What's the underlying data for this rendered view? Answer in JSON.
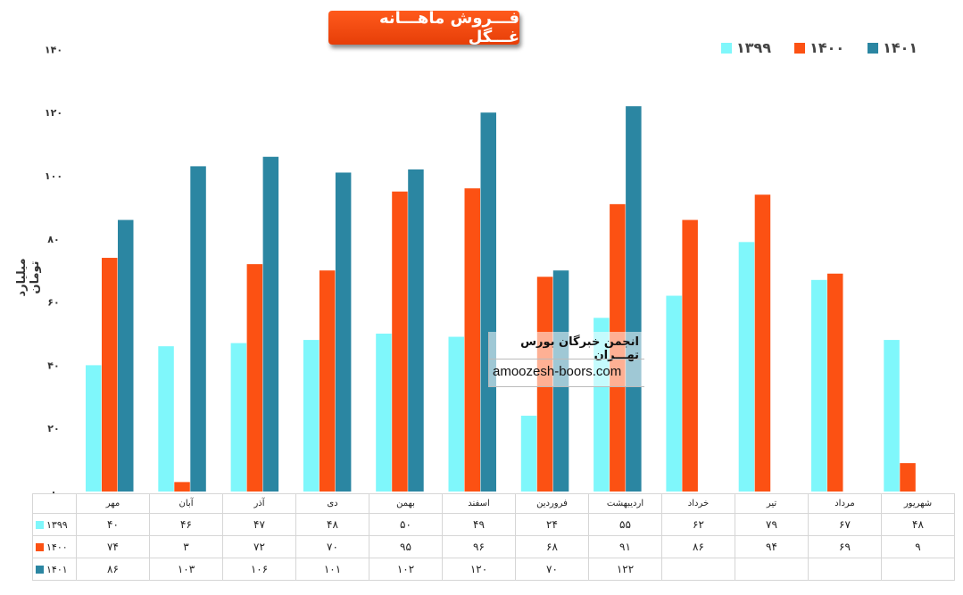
{
  "header": {
    "title": "فـــروش ماهـــانه غـــگل"
  },
  "colors": {
    "s1399": "#7ff7fb",
    "s1400": "#fc5113",
    "s1401": "#2b86a2",
    "grid_text": "#333333"
  },
  "chart_data": {
    "type": "bar",
    "title": "فـــروش ماهـــانه غـــگل",
    "ylabel": "میلیارد تومان",
    "xlabel": "",
    "ylim": [
      0,
      140
    ],
    "yticks": [
      0,
      20,
      40,
      60,
      80,
      100,
      120,
      140
    ],
    "ytick_labels": [
      "۰",
      "۲۰",
      "۴۰",
      "۶۰",
      "۸۰",
      "۱۰۰",
      "۱۲۰",
      "۱۴۰"
    ],
    "legend_position": "top-right",
    "categories": [
      "مهر",
      "آبان",
      "آذر",
      "دی",
      "بهمن",
      "اسفند",
      "فروردین",
      "اردیبهشت",
      "خرداد",
      "تیر",
      "مرداد",
      "شهریور"
    ],
    "series": [
      {
        "name": "۱۳۹۹",
        "color": "#7ff7fb",
        "values": [
          40,
          46,
          47,
          48,
          50,
          49,
          24,
          55,
          62,
          79,
          67,
          48
        ],
        "labels": [
          "۴۰",
          "۴۶",
          "۴۷",
          "۴۸",
          "۵۰",
          "۴۹",
          "۲۴",
          "۵۵",
          "۶۲",
          "۷۹",
          "۶۷",
          "۴۸"
        ]
      },
      {
        "name": "۱۴۰۰",
        "color": "#fc5113",
        "values": [
          74,
          3,
          72,
          70,
          95,
          96,
          68,
          91,
          86,
          94,
          69,
          9
        ],
        "labels": [
          "۷۴",
          "۳",
          "۷۲",
          "۷۰",
          "۹۵",
          "۹۶",
          "۶۸",
          "۹۱",
          "۸۶",
          "۹۴",
          "۶۹",
          "۹"
        ]
      },
      {
        "name": "۱۴۰۱",
        "color": "#2b86a2",
        "values": [
          86,
          103,
          106,
          101,
          102,
          120,
          70,
          122,
          null,
          null,
          null,
          null
        ],
        "labels": [
          "۸۶",
          "۱۰۳",
          "۱۰۶",
          "۱۰۱",
          "۱۰۲",
          "۱۲۰",
          "۷۰",
          "۱۲۲",
          "",
          "",
          "",
          ""
        ]
      }
    ]
  },
  "watermark": {
    "name": "انجمن خبرگان بورس تهـــران",
    "url": "amoozesh-boors.com"
  }
}
